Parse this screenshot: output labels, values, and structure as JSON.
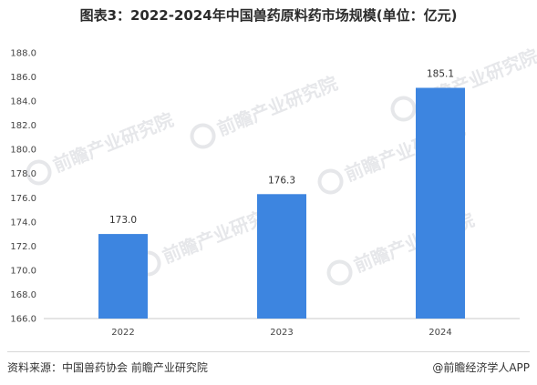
{
  "title": "图表3：2022-2024年中国兽药原料药市场规模(单位：亿元)",
  "source_text": "资料来源：中国兽药协会 前瞻产业研究院",
  "credit_text": "@前瞻经济学人APP",
  "watermark_text": "前瞻产业研究院",
  "colors": {
    "bar": "#3d85e0",
    "axis": "#c9c9c9"
  },
  "chart_data": {
    "type": "bar",
    "title": "图表3：2022-2024年中国兽药原料药市场规模(单位：亿元)",
    "categories": [
      "2022",
      "2023",
      "2024"
    ],
    "values": [
      173.0,
      176.3,
      185.1
    ],
    "value_labels": [
      "173.0",
      "176.3",
      "185.1"
    ],
    "ylim": [
      166,
      188
    ],
    "yticks": [
      "166.0",
      "168.0",
      "170.0",
      "172.0",
      "174.0",
      "176.0",
      "178.0",
      "180.0",
      "182.0",
      "184.0",
      "186.0",
      "188.0"
    ],
    "grid": false,
    "legend": "none"
  }
}
